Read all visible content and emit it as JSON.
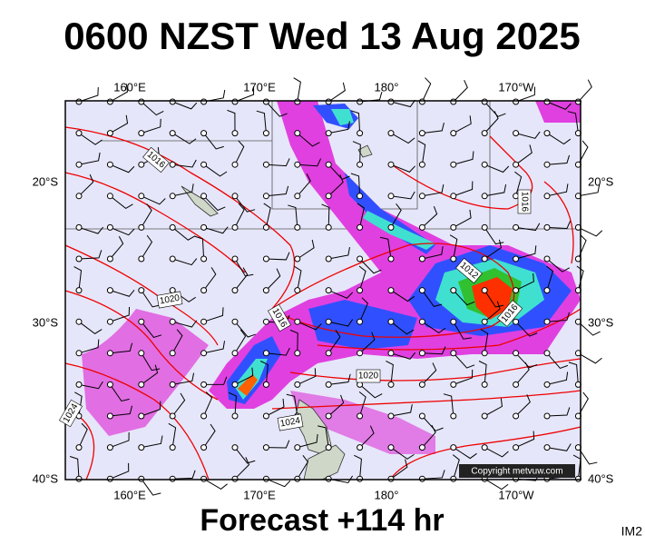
{
  "title": "0600 NZST Wed 13 Aug 2025",
  "footer": "Forecast +114 hr",
  "image_id": "IM2",
  "copyright": "Copyright metvuw.com",
  "longitude_labels": [
    "160°E",
    "170°E",
    "180°",
    "170°W"
  ],
  "latitude_labels": [
    "20°S",
    "30°S",
    "40°S"
  ],
  "isobar_labels": [
    "1016",
    "1016",
    "1020",
    "1016",
    "1012",
    "1016",
    "1020",
    "1024",
    "1024"
  ]
}
